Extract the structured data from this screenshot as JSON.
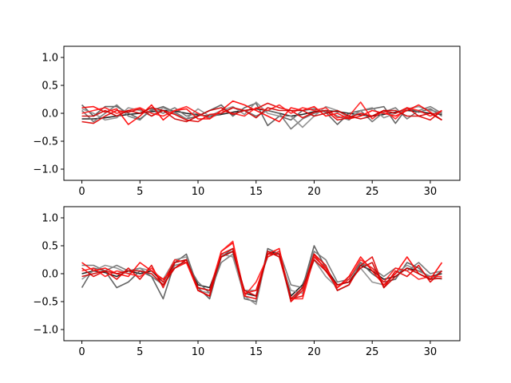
{
  "chart_data": [
    {
      "type": "line",
      "title": "",
      "xlabel": "",
      "ylabel": "",
      "xlim": [
        -1.55,
        32.55
      ],
      "ylim": [
        -1.2,
        1.2
      ],
      "grid": false,
      "x_ticks": [
        0,
        5,
        10,
        15,
        20,
        25,
        30
      ],
      "x_tick_labels": [
        "0",
        "5",
        "10",
        "15",
        "20",
        "25",
        "30"
      ],
      "y_ticks": [
        -1.0,
        -0.5,
        0.0,
        0.5,
        1.0
      ],
      "y_tick_labels": [
        "−1.0",
        "−0.5",
        "0.0",
        "0.5",
        "1.0"
      ],
      "x": [
        0,
        1,
        2,
        3,
        4,
        5,
        6,
        7,
        8,
        9,
        10,
        11,
        12,
        13,
        14,
        15,
        16,
        17,
        18,
        19,
        20,
        21,
        22,
        23,
        24,
        25,
        26,
        27,
        28,
        29,
        30,
        31
      ],
      "series": [
        {
          "color": "#000000",
          "values": [
            -0.1,
            -0.1,
            -0.08,
            -0.05,
            -0.02,
            0.0,
            0.03,
            0.05,
            0.04,
            0.0,
            -0.03,
            -0.05,
            -0.02,
            0.02,
            0.05,
            0.08,
            0.05,
            0.0,
            -0.05,
            -0.02,
            0.03,
            0.05,
            0.03,
            0.0,
            -0.03,
            -0.05,
            -0.02,
            0.02,
            0.05,
            0.03,
            0.0,
            -0.02
          ]
        },
        {
          "color": "#555555",
          "values": [
            0.15,
            -0.05,
            0.12,
            0.12,
            0.0,
            -0.1,
            0.05,
            0.12,
            0.02,
            -0.1,
            -0.05,
            0.05,
            0.15,
            -0.05,
            0.1,
            0.18,
            -0.22,
            -0.05,
            -0.12,
            0.05,
            0.08,
            0.02,
            -0.2,
            0.0,
            0.05,
            0.08,
            0.12,
            -0.18,
            0.1,
            0.02,
            0.08,
            -0.05
          ]
        },
        {
          "color": "#6f6f6f",
          "values": [
            0.05,
            -0.15,
            0.0,
            0.15,
            -0.05,
            -0.12,
            0.08,
            0.0,
            0.1,
            -0.05,
            0.0,
            -0.08,
            0.0,
            0.1,
            0.05,
            -0.05,
            0.05,
            0.0,
            -0.28,
            -0.1,
            0.0,
            0.05,
            -0.05,
            -0.12,
            0.05,
            -0.15,
            0.02,
            0.1,
            -0.1,
            0.05,
            0.12,
            0.0
          ]
        },
        {
          "color": "#8a8a8a",
          "values": [
            0.08,
            0.0,
            -0.12,
            -0.08,
            0.1,
            0.05,
            -0.05,
            0.1,
            0.0,
            -0.1,
            0.08,
            -0.05,
            0.05,
            0.12,
            -0.02,
            0.2,
            0.0,
            -0.05,
            -0.05,
            -0.25,
            -0.05,
            0.12,
            0.05,
            -0.08,
            0.05,
            0.1,
            -0.08,
            0.0,
            0.08,
            0.12,
            0.05,
            0.02
          ]
        },
        {
          "color": "#ff0000",
          "values": [
            0.1,
            0.12,
            0.02,
            0.08,
            -0.2,
            -0.05,
            0.15,
            -0.12,
            0.05,
            0.08,
            -0.1,
            -0.1,
            0.05,
            0.22,
            0.15,
            0.05,
            -0.05,
            -0.15,
            0.1,
            0.05,
            0.12,
            -0.05,
            0.0,
            -0.1,
            -0.05,
            0.05,
            0.0,
            -0.05,
            0.05,
            0.15,
            0.02,
            -0.12
          ]
        },
        {
          "color": "#e00000",
          "values": [
            -0.15,
            -0.18,
            -0.05,
            0.05,
            0.02,
            0.08,
            -0.05,
            0.05,
            -0.02,
            -0.12,
            -0.15,
            -0.02,
            0.0,
            0.1,
            0.05,
            0.08,
            0.18,
            0.1,
            0.05,
            -0.08,
            0.02,
            0.05,
            -0.12,
            -0.08,
            0.0,
            -0.05,
            0.05,
            0.0,
            0.1,
            -0.05,
            -0.12,
            0.05
          ]
        },
        {
          "color": "#ff1a1a",
          "values": [
            0.0,
            0.05,
            0.1,
            0.0,
            0.05,
            0.1,
            0.0,
            -0.05,
            0.05,
            0.12,
            0.0,
            -0.1,
            0.05,
            0.0,
            -0.05,
            0.1,
            0.05,
            0.15,
            0.0,
            0.1,
            0.05,
            0.1,
            -0.08,
            -0.05,
            0.2,
            -0.1,
            0.05,
            -0.1,
            0.1,
            0.05,
            -0.05,
            0.05
          ]
        },
        {
          "color": "#cc0000",
          "values": [
            -0.05,
            -0.05,
            0.05,
            -0.05,
            0.05,
            0.0,
            0.1,
            0.05,
            -0.1,
            -0.15,
            -0.05,
            0.05,
            0.1,
            -0.02,
            0.05,
            -0.08,
            0.1,
            0.05,
            0.05,
            0.05,
            -0.05,
            0.0,
            0.05,
            -0.05,
            -0.1,
            -0.05,
            0.05,
            0.05,
            -0.05,
            -0.05,
            0.0,
            -0.12
          ]
        }
      ]
    },
    {
      "type": "line",
      "title": "",
      "xlabel": "",
      "ylabel": "",
      "xlim": [
        -1.55,
        32.55
      ],
      "ylim": [
        -1.2,
        1.2
      ],
      "grid": false,
      "x_ticks": [
        0,
        5,
        10,
        15,
        20,
        25,
        30
      ],
      "x_tick_labels": [
        "0",
        "5",
        "10",
        "15",
        "20",
        "25",
        "30"
      ],
      "y_ticks": [
        -1.0,
        -0.5,
        0.0,
        0.5,
        1.0
      ],
      "y_tick_labels": [
        "−1.0",
        "−0.5",
        "0.0",
        "0.5",
        "1.0"
      ],
      "x": [
        0,
        1,
        2,
        3,
        4,
        5,
        6,
        7,
        8,
        9,
        10,
        11,
        12,
        13,
        14,
        15,
        16,
        17,
        18,
        19,
        20,
        21,
        22,
        23,
        24,
        25,
        26,
        27,
        28,
        29,
        30,
        31
      ],
      "series": [
        {
          "color": "#000000",
          "values": [
            0.0,
            0.05,
            0.02,
            -0.05,
            0.05,
            0.0,
            0.05,
            -0.15,
            0.2,
            0.25,
            -0.2,
            -0.25,
            0.3,
            0.4,
            -0.35,
            -0.4,
            0.4,
            0.35,
            -0.4,
            -0.2,
            0.3,
            0.1,
            -0.2,
            -0.15,
            0.15,
            0.05,
            -0.1,
            -0.05,
            0.1,
            0.05,
            -0.05,
            0.0
          ]
        },
        {
          "color": "#555555",
          "values": [
            -0.25,
            0.1,
            0.05,
            -0.25,
            -0.15,
            0.05,
            -0.05,
            -0.45,
            0.2,
            0.35,
            -0.25,
            -0.45,
            0.3,
            0.45,
            -0.45,
            -0.5,
            0.45,
            0.35,
            -0.5,
            -0.25,
            0.5,
            0.1,
            -0.3,
            -0.2,
            0.2,
            0.0,
            -0.15,
            -0.1,
            0.2,
            0.1,
            -0.1,
            0.05
          ]
        },
        {
          "color": "#6f6f6f",
          "values": [
            0.15,
            0.15,
            0.05,
            0.15,
            0.05,
            0.1,
            -0.05,
            -0.2,
            0.15,
            0.2,
            -0.15,
            -0.35,
            0.2,
            0.35,
            -0.3,
            -0.3,
            0.3,
            0.4,
            -0.2,
            -0.25,
            0.4,
            0.25,
            -0.15,
            -0.1,
            0.2,
            0.1,
            -0.05,
            0.1,
            0.05,
            0.2,
            0.0,
            0.05
          ]
        },
        {
          "color": "#8a8a8a",
          "values": [
            -0.1,
            0.05,
            0.15,
            0.1,
            0.0,
            0.1,
            0.05,
            -0.1,
            0.25,
            0.3,
            -0.3,
            -0.35,
            0.35,
            0.3,
            -0.4,
            -0.55,
            0.4,
            0.3,
            -0.3,
            -0.35,
            0.25,
            -0.05,
            -0.25,
            -0.05,
            0.1,
            -0.15,
            -0.2,
            0.0,
            0.15,
            0.05,
            -0.05,
            -0.1
          ]
        },
        {
          "color": "#ff0000",
          "values": [
            0.2,
            0.05,
            0.1,
            0.0,
            -0.05,
            0.2,
            0.05,
            -0.1,
            0.1,
            0.2,
            -0.3,
            -0.4,
            0.4,
            0.55,
            -0.35,
            -0.3,
            0.35,
            0.45,
            -0.5,
            -0.3,
            0.35,
            0.05,
            -0.25,
            -0.05,
            0.3,
            0.05,
            -0.2,
            0.0,
            0.3,
            0.0,
            -0.1,
            0.2
          ]
        },
        {
          "color": "#e00000",
          "values": [
            0.1,
            -0.05,
            0.05,
            -0.1,
            0.1,
            -0.1,
            0.15,
            -0.25,
            0.2,
            0.25,
            -0.3,
            -0.4,
            0.35,
            0.45,
            -0.4,
            -0.45,
            0.4,
            0.3,
            -0.45,
            -0.4,
            0.35,
            0.15,
            -0.3,
            -0.2,
            0.15,
            0.3,
            -0.25,
            0.05,
            -0.05,
            0.15,
            -0.15,
            0.05
          ]
        },
        {
          "color": "#ff1a1a",
          "values": [
            0.05,
            0.1,
            -0.05,
            0.05,
            0.0,
            -0.05,
            0.1,
            -0.15,
            0.25,
            0.2,
            -0.25,
            -0.3,
            0.4,
            0.58,
            -0.4,
            -0.15,
            0.3,
            0.4,
            -0.45,
            -0.45,
            0.3,
            0.1,
            -0.25,
            -0.1,
            0.25,
            0.1,
            -0.15,
            0.1,
            0.05,
            -0.1,
            -0.05,
            -0.05
          ]
        },
        {
          "color": "#cc0000",
          "values": [
            -0.05,
            0.0,
            0.05,
            0.0,
            0.05,
            0.05,
            0.0,
            -0.2,
            0.1,
            0.25,
            -0.25,
            -0.3,
            0.3,
            0.4,
            -0.3,
            -0.4,
            0.35,
            0.35,
            -0.45,
            -0.25,
            0.25,
            0.05,
            -0.2,
            -0.15,
            0.1,
            0.2,
            -0.25,
            -0.05,
            0.1,
            0.0,
            -0.1,
            -0.08
          ]
        }
      ]
    }
  ]
}
